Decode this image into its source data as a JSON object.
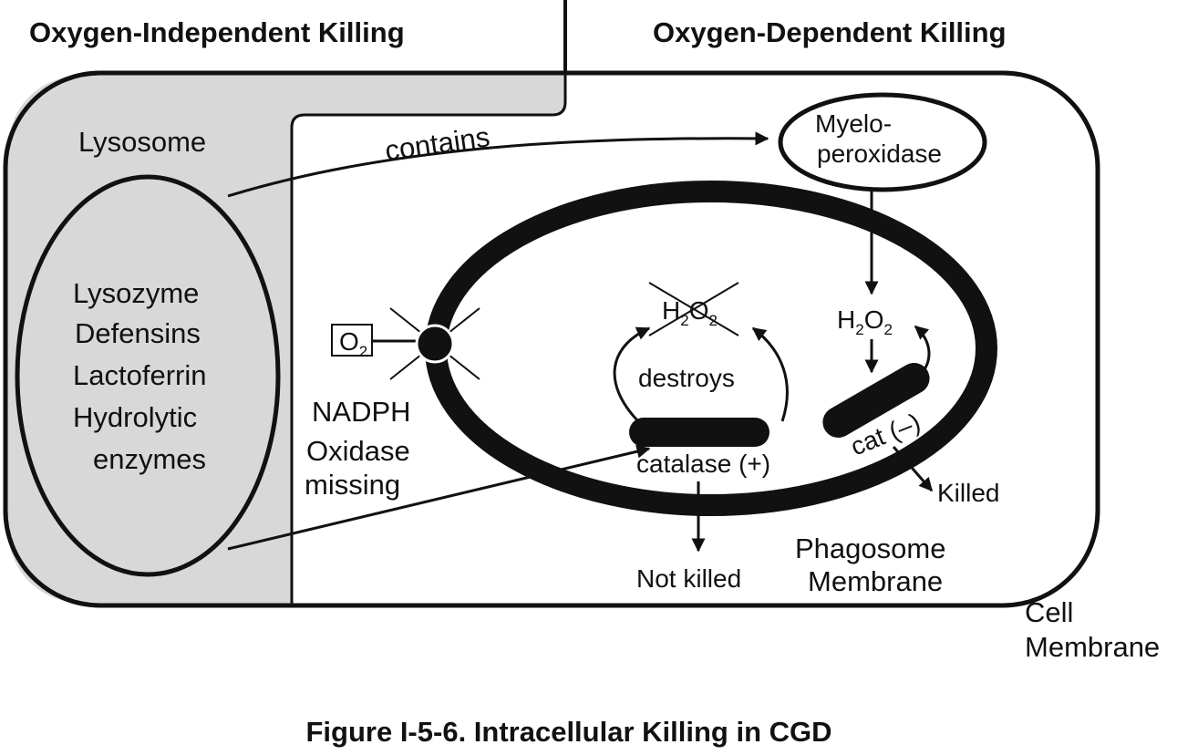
{
  "colors": {
    "ink": "#111111",
    "lysosome_fill": "#d8d8d8",
    "background": "#ffffff"
  },
  "headers": {
    "left": "Oxygen-Independent Killing",
    "right": "Oxygen-Dependent Killing"
  },
  "lysosome": {
    "title": "Lysosome",
    "contents": [
      "Lysozyme",
      "Defensins",
      "Lactoferrin",
      "Hydrolytic",
      "enzymes"
    ]
  },
  "contains_label": "contains",
  "myeloperoxidase": {
    "line1": "Myelo-",
    "line2": "peroxidase"
  },
  "oxidase": {
    "o2_base": "O",
    "o2_sub": "2",
    "label_lines": [
      "NADPH",
      "Oxidase",
      "missing"
    ]
  },
  "h2o2": {
    "a": "H",
    "sub1": "2",
    "b": "O",
    "sub2": "2"
  },
  "destroys_label": "destroys",
  "catalase_pos_label": "catalase (+)",
  "catalase_neg_label": "cat (–)",
  "not_killed_label": "Not killed",
  "killed_label": "Killed",
  "phagosome_label": {
    "line1": "Phagosome",
    "line2": "Membrane"
  },
  "cell_membrane_label": {
    "line1": "Cell",
    "line2": "Membrane"
  },
  "caption": "Figure I-5-6. Intracellular Killing in CGD"
}
